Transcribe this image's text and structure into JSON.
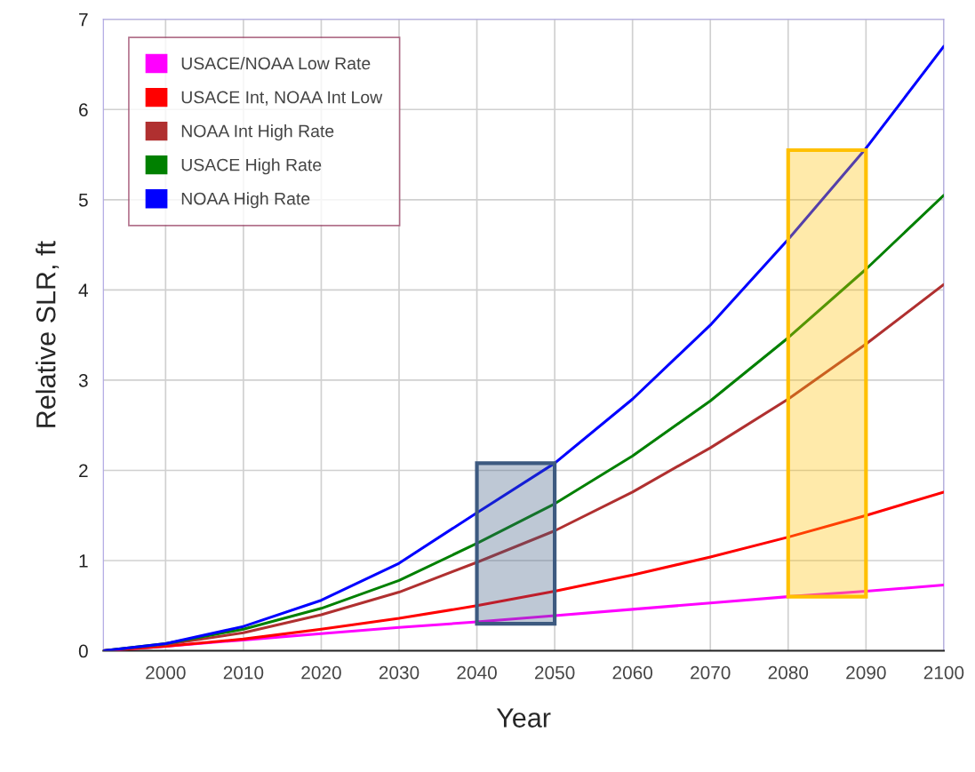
{
  "chart_data": {
    "type": "line",
    "xlabel": "Year",
    "ylabel": "Relative SLR, ft",
    "x": [
      1992,
      2000,
      2010,
      2020,
      2030,
      2040,
      2050,
      2060,
      2070,
      2080,
      2090,
      2100
    ],
    "xlim": [
      1992,
      2100
    ],
    "xticks": [
      2000,
      2010,
      2020,
      2030,
      2040,
      2050,
      2060,
      2070,
      2080,
      2090,
      2100
    ],
    "ylim": [
      0,
      7
    ],
    "yticks": [
      0,
      1,
      2,
      3,
      4,
      5,
      6,
      7
    ],
    "grid": true,
    "legend": "top left",
    "marker": "none",
    "line_style": "solid",
    "series": [
      {
        "name": "USACE/NOAA Low Rate",
        "color": "#ff00ff",
        "values": [
          0,
          0.05,
          0.12,
          0.19,
          0.26,
          0.32,
          0.39,
          0.46,
          0.53,
          0.6,
          0.66,
          0.73
        ]
      },
      {
        "name": "USACE Int, NOAA Int Low",
        "color": "#ff0000",
        "values": [
          0,
          0.05,
          0.13,
          0.24,
          0.36,
          0.5,
          0.66,
          0.84,
          1.04,
          1.26,
          1.5,
          1.76
        ]
      },
      {
        "name": "NOAA Int High Rate",
        "color": "#b03030",
        "values": [
          0,
          0.07,
          0.2,
          0.4,
          0.65,
          0.98,
          1.33,
          1.76,
          2.25,
          2.79,
          3.4,
          4.06
        ]
      },
      {
        "name": "USACE High Rate",
        "color": "#008000",
        "values": [
          0,
          0.08,
          0.24,
          0.47,
          0.78,
          1.19,
          1.63,
          2.16,
          2.77,
          3.47,
          4.23,
          5.05
        ]
      },
      {
        "name": "NOAA High Rate",
        "color": "#0000ff",
        "values": [
          0,
          0.08,
          0.27,
          0.56,
          0.97,
          1.53,
          2.08,
          2.79,
          3.61,
          4.56,
          5.57,
          6.7
        ]
      },
      {
        "type": "bar",
        "x": [
          2045
        ],
        "base": [
          0.3
        ],
        "values": [
          1.78
        ],
        "color": "#3d5a80"
      },
      {
        "type": "bar",
        "x": [
          2085
        ],
        "base": [
          0.6
        ],
        "values": [
          4.95
        ],
        "color": "#ffc000"
      }
    ]
  }
}
